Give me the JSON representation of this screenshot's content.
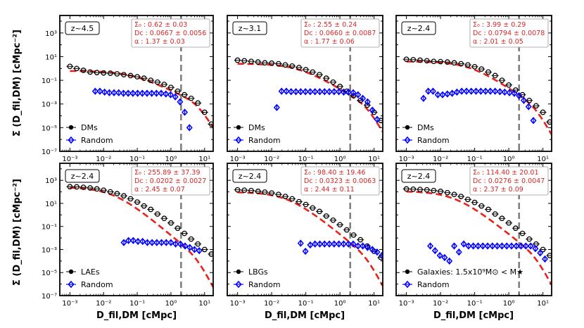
{
  "colors": {
    "data": "#000000",
    "random": "#0000ff",
    "fit": "#e8221b",
    "vline": "#808080",
    "fit_text": "#d62728"
  },
  "panels": [
    {
      "z": "z~4.5",
      "fit": [
        "Σ₀  : 0.62 ± 0.03",
        "Dc : 0.0667 ± 0.0056",
        "α : 1.37 ± 0.03"
      ],
      "legend": [
        "DMs",
        "Random"
      ]
    },
    {
      "z": "z~3.1",
      "fit": [
        "Σ₀  : 2.55 ± 0.24",
        "Dc : 0.0660 ± 0.0087",
        "α : 1.77 ± 0.06"
      ],
      "legend": [
        "DMs",
        "Random"
      ]
    },
    {
      "z": "z~2.4",
      "fit": [
        "Σ₀  : 3.99 ± 0.29",
        "Dc : 0.0794 ± 0.0078",
        "α : 2.01 ± 0.05"
      ],
      "legend": [
        "DMs",
        "Random"
      ]
    },
    {
      "z": "z~2.4",
      "fit": [
        "Σ₀  : 255.89 ± 37.39",
        "Dc : 0.0202 ± 0.0027",
        "α : 2.45 ± 0.07"
      ],
      "legend": [
        "LAEs",
        "Random"
      ]
    },
    {
      "z": "z~2.4",
      "fit": [
        "Σ₀  : 98.40 ± 19.46",
        "Dc : 0.0323 ± 0.0063",
        "α : 2.44 ± 0.11"
      ],
      "legend": [
        "LBGs",
        "Random"
      ]
    },
    {
      "z": "z~2.4",
      "fit": [
        "Σ₀  : 114.40 ± 20.01",
        "Dc : 0.0276 ± 0.0047",
        "α : 2.37 ± 0.09"
      ],
      "legend": [
        "Galaxies: 1.5x10⁹M⊙ < M★",
        "Random"
      ]
    }
  ],
  "chart_data": {
    "type": "scatter",
    "title": "",
    "xlabel": "D_fil,DM [cMpc]",
    "ylabel": "Σ (D_fil,DM) [cMpc⁻²]",
    "xscale": "log",
    "yscale": "log",
    "xlim": [
      0.0005,
      18
    ],
    "ylim": [
      1e-07,
      30000
    ],
    "xticks": [
      "10⁻³",
      "10⁻²",
      "10⁻¹",
      "10⁰",
      "10¹"
    ],
    "yticks": [
      "10⁻⁷",
      "10⁻⁵",
      "10⁻³",
      "10⁻¹",
      "10¹",
      "10³"
    ],
    "vline_x": 2.0,
    "panels": [
      {
        "data": {
          "x0": -3,
          "y": [
            1.5,
            1.0,
            0.7,
            0.5,
            0.45,
            0.42,
            0.4,
            0.35,
            0.3,
            0.25,
            0.2,
            0.15,
            0.1,
            0.07,
            0.045,
            0.025,
            0.012,
            0.006,
            0.003,
            0.0012,
            0.0002,
            2e-05
          ]
        },
        "random": {
          "x0": -2.25,
          "y": [
            0.012,
            0.012,
            0.01,
            0.009,
            0.009,
            0.009,
            0.008,
            0.008,
            0.008,
            0.008,
            0.008,
            0.008,
            0.008,
            0.008,
            0.008,
            0.007,
            0.006,
            0.004,
            0.0015,
            0.0002,
            1e-05
          ]
        },
        "fit": {
          "sigma0": 0.62,
          "dc": 0.0667,
          "alpha": 1.37
        }
      },
      {
        "data": {
          "x0": -3,
          "y": [
            5,
            4.5,
            4,
            3.5,
            3,
            2.8,
            2.5,
            2,
            1.6,
            1.2,
            0.8,
            0.5,
            0.3,
            0.15,
            0.07,
            0.03,
            0.012,
            0.005,
            0.002,
            0.0008,
            0.0002,
            4e-05
          ]
        },
        "random": {
          "x0": -1.85,
          "y": [
            0.0005,
            0.012,
            0.012,
            0.011,
            0.011,
            0.011,
            0.011,
            0.011,
            0.011,
            0.011,
            0.011,
            0.011,
            0.011,
            0.011,
            0.01,
            0.01,
            0.009,
            0.006,
            0.003,
            0.0015,
            0.0003,
            5e-05
          ]
        },
        "fit": {
          "sigma0": 2.55,
          "dc": 0.066,
          "alpha": 1.77
        }
      },
      {
        "data": {
          "x0": -3,
          "y": [
            6,
            5.5,
            5,
            4.5,
            4,
            3.8,
            3.5,
            3,
            2.5,
            2,
            1.4,
            0.9,
            0.5,
            0.25,
            0.1,
            0.04,
            0.015,
            0.006,
            0.002,
            0.0007,
            0.0002,
            3e-05
          ]
        },
        "random": {
          "x0": -2.5,
          "y": [
            0.003,
            0.012,
            0.012,
            0.006,
            0.006,
            0.007,
            0.008,
            0.01,
            0.012,
            0.012,
            0.012,
            0.012,
            0.012,
            0.012,
            0.012,
            0.012,
            0.011,
            0.01,
            0.009,
            0.008,
            0.005,
            0.002,
            0.0006,
            4e-05
          ]
        },
        "fit": {
          "sigma0": 3.99,
          "dc": 0.0794,
          "alpha": 2.01
        }
      },
      {
        "data": {
          "x0": -3,
          "y": [
            280,
            270,
            250,
            220,
            180,
            140,
            100,
            70,
            45,
            25,
            13,
            6,
            3,
            1.2,
            0.5,
            0.2,
            0.07,
            0.025,
            0.008,
            0.003,
            0.001,
            0.0004,
            7e-05,
            1.5e-05
          ]
        },
        "random": {
          "x0": -1.4,
          "y": [
            0.004,
            0.006,
            0.006,
            0.005,
            0.005,
            0.004,
            0.004,
            0.004,
            0.004,
            0.004,
            0.004,
            0.003,
            0.003,
            0.002,
            0.0015,
            0.001,
            0.0008
          ]
        },
        "fit": {
          "sigma0": 255.89,
          "dc": 0.0202,
          "alpha": 2.45
        }
      },
      {
        "data": {
          "x0": -3,
          "y": [
            150,
            140,
            130,
            110,
            95,
            80,
            60,
            40,
            25,
            14,
            8,
            4,
            2,
            0.8,
            0.35,
            0.14,
            0.05,
            0.018,
            0.007,
            0.002,
            0.0007,
            0.0002,
            4e-05,
            1.2e-05
          ]
        },
        "random": {
          "x0": -1.15,
          "y": [
            0.0035,
            0.0007,
            0.0025,
            0.003,
            0.003,
            0.003,
            0.003,
            0.003,
            0.003,
            0.003,
            0.003,
            0.003,
            0.002,
            0.002,
            0.0015,
            0.001,
            0.0006,
            0.0003
          ]
        },
        "fit": {
          "sigma0": 98.4,
          "dc": 0.0323,
          "alpha": 2.44
        }
      },
      {
        "data": {
          "x0": -3,
          "y": [
            180,
            170,
            160,
            150,
            130,
            110,
            85,
            60,
            40,
            22,
            12,
            6,
            3,
            1.2,
            0.5,
            0.2,
            0.07,
            0.025,
            0.008,
            0.003,
            0.001,
            0.0003,
            5e-05,
            8e-06
          ]
        },
        "random": {
          "x0": -2.3,
          "y": [
            0.002,
            0.0008,
            0.0003,
            0.0002,
            0.0001,
            0.002,
            0.0006,
            0.003,
            0.002,
            0.002,
            0.002,
            0.002,
            0.002,
            0.002,
            0.002,
            0.002,
            0.002,
            0.002,
            0.002,
            0.002,
            0.002,
            0.002,
            0.0012,
            0.0005,
            0.00015
          ]
        },
        "fit": {
          "sigma0": 114.4,
          "dc": 0.0276,
          "alpha": 2.37
        }
      }
    ]
  }
}
